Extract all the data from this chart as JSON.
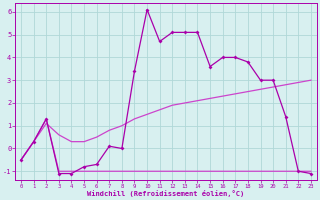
{
  "x": [
    0,
    1,
    2,
    3,
    4,
    5,
    6,
    7,
    8,
    9,
    10,
    11,
    12,
    13,
    14,
    15,
    16,
    17,
    18,
    19,
    20,
    21,
    22,
    23
  ],
  "y_main": [
    -0.5,
    0.3,
    1.3,
    -1.1,
    -1.1,
    -0.8,
    -0.7,
    0.1,
    0.0,
    3.4,
    6.1,
    4.7,
    5.1,
    5.1,
    5.1,
    3.6,
    4.0,
    4.0,
    3.8,
    3.0,
    3.0,
    1.4,
    -1.0,
    -1.1
  ],
  "y_smooth1": [
    -0.5,
    0.3,
    1.3,
    -1.0,
    -1.0,
    -1.0,
    -1.0,
    -1.0,
    -1.0,
    -1.0,
    -1.0,
    -1.0,
    -1.0,
    -1.0,
    -1.0,
    -1.0,
    -1.0,
    -1.0,
    -1.0,
    -1.0,
    -1.0,
    -1.0,
    -1.0,
    -1.0
  ],
  "y_smooth2": [
    -0.5,
    0.3,
    1.1,
    0.6,
    0.3,
    0.3,
    0.5,
    0.8,
    1.0,
    1.3,
    1.5,
    1.7,
    1.9,
    2.0,
    2.1,
    2.2,
    2.3,
    2.4,
    2.5,
    2.6,
    2.7,
    2.8,
    2.9,
    3.0
  ],
  "color_main": "#aa00aa",
  "color_smooth1": "#cc44cc",
  "color_smooth2": "#cc44cc",
  "background": "#d8f0f0",
  "grid_color": "#b0d8d8",
  "xlabel": "Windchill (Refroidissement éolien,°C)",
  "xlim": [
    -0.5,
    23.5
  ],
  "ylim": [
    -1.4,
    6.4
  ],
  "yticks": [
    -1,
    0,
    1,
    2,
    3,
    4,
    5,
    6
  ],
  "xticks": [
    0,
    1,
    2,
    3,
    4,
    5,
    6,
    7,
    8,
    9,
    10,
    11,
    12,
    13,
    14,
    15,
    16,
    17,
    18,
    19,
    20,
    21,
    22,
    23
  ]
}
